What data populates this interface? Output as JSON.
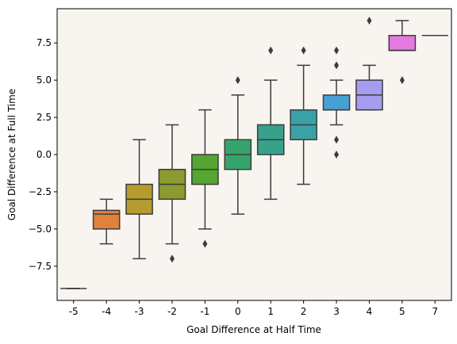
{
  "chart_data": {
    "type": "box",
    "title": "",
    "xlabel": "Goal Difference at Half Time",
    "ylabel": "Goal Difference at Full Time",
    "ylim": [
      -9.8,
      9.8
    ],
    "y_ticks": [
      -7.5,
      -5.0,
      -2.5,
      0.0,
      2.5,
      5.0,
      7.5
    ],
    "y_tick_labels": [
      "−7.5",
      "−5.0",
      "−2.5",
      "0.0",
      "2.5",
      "5.0",
      "7.5"
    ],
    "plot_background": "#f8f5f0",
    "categories": [
      "-5",
      "-4",
      "-3",
      "-2",
      "-1",
      "0",
      "1",
      "2",
      "3",
      "4",
      "5",
      "7"
    ],
    "boxes": [
      {
        "category": "-5",
        "color": "#e6e6e6",
        "whislo": -9,
        "q1": -9,
        "median": -9,
        "q3": -9,
        "whishi": -9,
        "fliers": []
      },
      {
        "category": "-4",
        "color": "#e1813c",
        "whislo": -6,
        "q1": -5,
        "median": -4,
        "q3": -3.75,
        "whishi": -3,
        "fliers": []
      },
      {
        "category": "-3",
        "color": "#b49c2f",
        "whislo": -7,
        "q1": -4,
        "median": -3,
        "q3": -2,
        "whishi": 1,
        "fliers": []
      },
      {
        "category": "-2",
        "color": "#8b9b30",
        "whislo": -6,
        "q1": -3,
        "median": -2,
        "q3": -1,
        "whishi": 2,
        "fliers": [
          -7
        ]
      },
      {
        "category": "-1",
        "color": "#55a630",
        "whislo": -5,
        "q1": -2,
        "median": -1,
        "q3": 0,
        "whishi": 3,
        "fliers": [
          -6
        ]
      },
      {
        "category": "0",
        "color": "#34a46b",
        "whislo": -4,
        "q1": -1,
        "median": 0,
        "q3": 1,
        "whishi": 4,
        "fliers": [
          5
        ]
      },
      {
        "category": "1",
        "color": "#37a18c",
        "whislo": -3,
        "q1": 0,
        "median": 1,
        "q3": 2,
        "whishi": 5,
        "fliers": [
          7
        ]
      },
      {
        "category": "2",
        "color": "#3aa2a6",
        "whislo": -2,
        "q1": 1,
        "median": 2,
        "q3": 3,
        "whishi": 6,
        "fliers": [
          7
        ]
      },
      {
        "category": "3",
        "color": "#47a0d4",
        "whislo": 2,
        "q1": 3,
        "median": 3,
        "q3": 4,
        "whishi": 5,
        "fliers": [
          0,
          1,
          6,
          7
        ]
      },
      {
        "category": "4",
        "color": "#a69cf0",
        "whislo": 3,
        "q1": 3,
        "median": 4,
        "q3": 5,
        "whishi": 6,
        "fliers": [
          9
        ]
      },
      {
        "category": "5",
        "color": "#e47ae0",
        "whislo": 7,
        "q1": 7,
        "median": 7,
        "q3": 8,
        "whishi": 9,
        "fliers": [
          5
        ]
      },
      {
        "category": "7",
        "color": "#e6e6e6",
        "whislo": 8,
        "q1": 8,
        "median": 8,
        "q3": 8,
        "whishi": 8,
        "fliers": []
      }
    ]
  }
}
